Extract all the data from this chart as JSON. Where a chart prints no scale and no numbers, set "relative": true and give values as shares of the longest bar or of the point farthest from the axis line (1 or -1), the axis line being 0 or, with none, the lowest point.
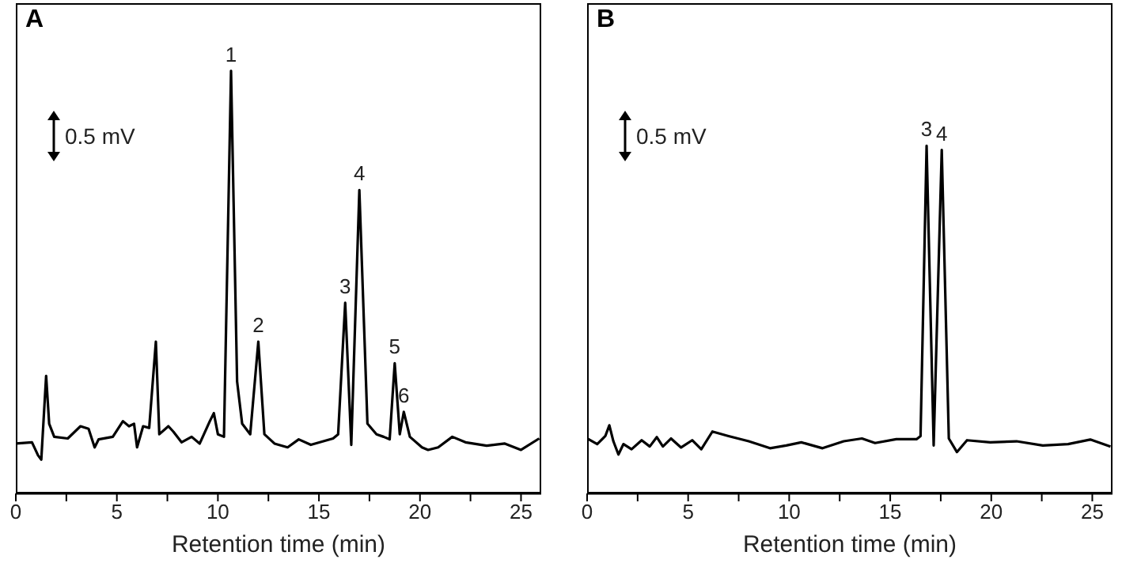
{
  "chart_data": [
    {
      "type": "line",
      "title": "A",
      "xlabel": "Retention time (min)",
      "relative": true,
      "xlim": [
        0,
        26
      ],
      "xticks": [
        0,
        {
          "value": 2.5,
          "label": null
        },
        5,
        {
          "value": 7.5,
          "label": null
        },
        10,
        {
          "value": 12.5,
          "label": null
        },
        15,
        {
          "value": 17.5,
          "label": null
        },
        20,
        {
          "value": 22.5,
          "label": null
        },
        25
      ],
      "grid": false,
      "legend": false,
      "marker": "none",
      "line_style": "solid",
      "annotations": [
        "0.5 mV",
        {
          "text": "1",
          "x": 10.65,
          "y": 1
        },
        {
          "text": "2",
          "x": 12.0,
          "y": 0.359
        },
        {
          "text": "3",
          "x": 16.3,
          "y": 0.451
        },
        {
          "text": "4",
          "x": 17.0,
          "y": 0.718
        },
        {
          "text": "5",
          "x": 18.75,
          "y": 0.308
        },
        {
          "text": "6",
          "x": 19.2,
          "y": 0.193
        }
      ],
      "x": [
        0,
        0.8,
        1.1,
        1.26,
        1.5,
        1.65,
        1.9,
        2.57,
        3.2,
        3.6,
        3.9,
        4.1,
        4.8,
        5.3,
        5.6,
        5.85,
        6.0,
        6.3,
        6.6,
        6.93,
        7.1,
        7.55,
        7.8,
        8.2,
        8.7,
        9.1,
        9.6,
        9.8,
        10.0,
        10.3,
        10.65,
        10.95,
        11.2,
        11.6,
        12.0,
        12.3,
        12.8,
        13.45,
        14.0,
        14.6,
        15.7,
        15.95,
        16.3,
        16.6,
        17.0,
        17.4,
        17.85,
        18.2,
        18.5,
        18.75,
        19.0,
        19.2,
        19.5,
        20.1,
        20.4,
        20.9,
        21.6,
        22.25,
        23.3,
        24.2,
        25.0,
        25.9
      ],
      "series": [
        {
          "color": "#000000",
          "values": [
            0.118,
            0.121,
            0.09,
            0.08,
            0.278,
            0.165,
            0.134,
            0.13,
            0.159,
            0.153,
            0.109,
            0.128,
            0.134,
            0.171,
            0.159,
            0.165,
            0.109,
            0.159,
            0.155,
            0.359,
            0.14,
            0.159,
            0.146,
            0.121,
            0.134,
            0.118,
            0.171,
            0.19,
            0.14,
            0.134,
            1.0,
            0.265,
            0.165,
            0.14,
            0.359,
            0.14,
            0.118,
            0.109,
            0.128,
            0.115,
            0.13,
            0.14,
            0.451,
            0.115,
            0.718,
            0.165,
            0.14,
            0.134,
            0.128,
            0.308,
            0.14,
            0.193,
            0.134,
            0.109,
            0.103,
            0.109,
            0.134,
            0.121,
            0.113,
            0.118,
            0.103,
            0.13
          ]
        }
      ]
    },
    {
      "type": "line",
      "title": "B",
      "xlabel": "Retention time (min)",
      "relative": true,
      "xlim": [
        0,
        26
      ],
      "xticks": [
        0,
        {
          "value": 2.5,
          "label": null
        },
        5,
        {
          "value": 7.5,
          "label": null
        },
        10,
        {
          "value": 12.5,
          "label": null
        },
        15,
        {
          "value": 17.5,
          "label": null
        },
        20,
        {
          "value": 22.5,
          "label": null
        },
        25
      ],
      "grid": false,
      "legend": false,
      "marker": "none",
      "line_style": "solid",
      "annotations": [
        "0.5 mV",
        {
          "text": "3",
          "x": 16.8,
          "y": 1
        },
        {
          "text": "4",
          "x": 17.55,
          "y": 0.988
        }
      ],
      "x": [
        0,
        0.5,
        0.9,
        1.1,
        1.3,
        1.55,
        1.8,
        2.2,
        2.7,
        3.1,
        3.45,
        3.75,
        4.15,
        4.65,
        5.2,
        5.65,
        6.2,
        7.0,
        8.0,
        9.05,
        9.85,
        10.6,
        11.65,
        12.7,
        13.6,
        14.25,
        15.3,
        16.3,
        16.5,
        16.8,
        17.15,
        17.55,
        17.9,
        18.3,
        18.8,
        19.95,
        21.25,
        22.55,
        23.8,
        24.9,
        25.9
      ],
      "series": [
        {
          "color": "#000000",
          "values": [
            0.158,
            0.142,
            0.165,
            0.196,
            0.15,
            0.112,
            0.142,
            0.127,
            0.153,
            0.135,
            0.162,
            0.135,
            0.158,
            0.132,
            0.153,
            0.127,
            0.178,
            0.165,
            0.15,
            0.13,
            0.138,
            0.147,
            0.13,
            0.15,
            0.158,
            0.145,
            0.156,
            0.156,
            0.165,
            1.0,
            0.138,
            0.988,
            0.158,
            0.119,
            0.153,
            0.147,
            0.15,
            0.138,
            0.142,
            0.155,
            0.135
          ]
        }
      ]
    }
  ]
}
